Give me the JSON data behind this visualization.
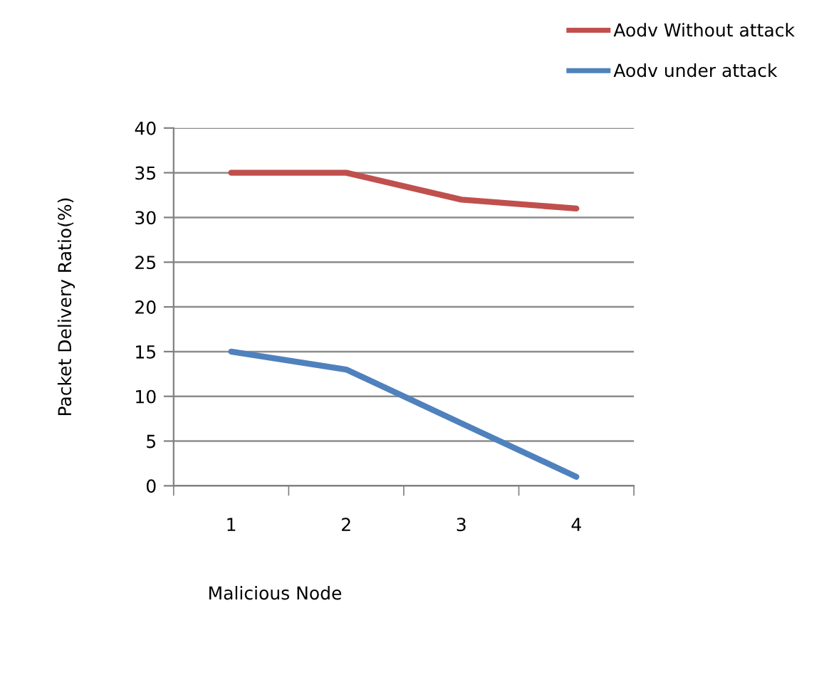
{
  "chart_data": {
    "type": "line",
    "xlabel": "Malicious Node",
    "ylabel": "Packet Delivery Ratio(%)",
    "categories": [
      "1",
      "2",
      "3",
      "4"
    ],
    "series": [
      {
        "name": "Aodv Without attack",
        "color": "#c0504d",
        "values": [
          35,
          35,
          32,
          31
        ]
      },
      {
        "name": "Aodv under attack",
        "color": "#4f81bd",
        "values": [
          15,
          13,
          7,
          1
        ]
      }
    ],
    "ylim": [
      0,
      40
    ],
    "yticks": [
      0,
      5,
      10,
      15,
      20,
      25,
      30,
      35,
      40
    ],
    "grid": "y",
    "legend": "top right",
    "marker": "none",
    "line_style": "solid"
  }
}
